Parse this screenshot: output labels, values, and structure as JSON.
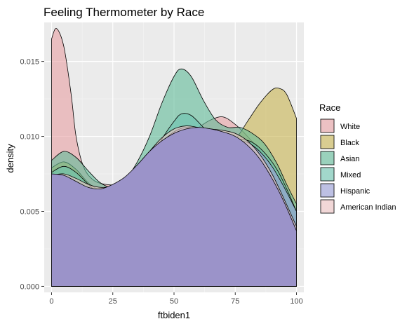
{
  "chart_data": {
    "type": "area",
    "title": "Feeling Thermometer by Race",
    "xlabel": "ftbiden1",
    "ylabel": "density",
    "xlim": [
      -3,
      103
    ],
    "ylim": [
      -0.0004,
      0.0176
    ],
    "x_ticks": [
      0,
      25,
      50,
      75,
      100
    ],
    "x_tick_labels": [
      "0",
      "25",
      "50",
      "75",
      "100"
    ],
    "y_ticks": [
      0.0,
      0.005,
      0.01,
      0.015
    ],
    "y_tick_labels": [
      "0.000",
      "0.005",
      "0.010",
      "0.015"
    ],
    "grid": true,
    "background": "#ebebeb",
    "legend": {
      "title": "Race",
      "position": "right"
    },
    "series": [
      {
        "name": "White",
        "color": "#e8a0a3",
        "opacity": 0.6,
        "points": [
          [
            0,
            0.0165
          ],
          [
            2,
            0.0172
          ],
          [
            5,
            0.016
          ],
          [
            8,
            0.0128
          ],
          [
            10,
            0.01
          ],
          [
            13,
            0.008
          ],
          [
            17,
            0.0071
          ],
          [
            22,
            0.0068
          ],
          [
            27,
            0.0068
          ],
          [
            33,
            0.0072
          ],
          [
            40,
            0.008
          ],
          [
            45,
            0.0088
          ],
          [
            50,
            0.0096
          ],
          [
            55,
            0.0101
          ],
          [
            60,
            0.0106
          ],
          [
            65,
            0.0111
          ],
          [
            70,
            0.0113
          ],
          [
            75,
            0.0108
          ],
          [
            80,
            0.01
          ],
          [
            85,
            0.009
          ],
          [
            90,
            0.0075
          ],
          [
            95,
            0.0058
          ],
          [
            100,
            0.004
          ]
        ]
      },
      {
        "name": "Black",
        "color": "#c8b450",
        "opacity": 0.6,
        "points": [
          [
            0,
            0.0079
          ],
          [
            5,
            0.0083
          ],
          [
            10,
            0.0078
          ],
          [
            15,
            0.0069
          ],
          [
            20,
            0.0064
          ],
          [
            25,
            0.0063
          ],
          [
            30,
            0.0066
          ],
          [
            35,
            0.0073
          ],
          [
            40,
            0.0082
          ],
          [
            45,
            0.009
          ],
          [
            50,
            0.0096
          ],
          [
            55,
            0.0098
          ],
          [
            60,
            0.0097
          ],
          [
            65,
            0.0094
          ],
          [
            70,
            0.0093
          ],
          [
            75,
            0.0098
          ],
          [
            80,
            0.011
          ],
          [
            85,
            0.0122
          ],
          [
            90,
            0.0131
          ],
          [
            93,
            0.0132
          ],
          [
            96,
            0.0128
          ],
          [
            100,
            0.0112
          ]
        ]
      },
      {
        "name": "Asian",
        "color": "#5fba98",
        "opacity": 0.6,
        "points": [
          [
            0,
            0.0084
          ],
          [
            5,
            0.009
          ],
          [
            10,
            0.0086
          ],
          [
            15,
            0.0077
          ],
          [
            20,
            0.0069
          ],
          [
            25,
            0.0066
          ],
          [
            30,
            0.0071
          ],
          [
            35,
            0.0083
          ],
          [
            40,
            0.01
          ],
          [
            45,
            0.0122
          ],
          [
            50,
            0.014
          ],
          [
            53,
            0.0145
          ],
          [
            57,
            0.014
          ],
          [
            62,
            0.0124
          ],
          [
            67,
            0.0111
          ],
          [
            72,
            0.0106
          ],
          [
            77,
            0.0106
          ],
          [
            82,
            0.0102
          ],
          [
            87,
            0.0095
          ],
          [
            92,
            0.0082
          ],
          [
            96,
            0.0068
          ],
          [
            100,
            0.0055
          ]
        ]
      },
      {
        "name": "Mixed",
        "color": "#6cc4b0",
        "opacity": 0.6,
        "points": [
          [
            0,
            0.0076
          ],
          [
            5,
            0.008
          ],
          [
            10,
            0.0076
          ],
          [
            15,
            0.0068
          ],
          [
            20,
            0.0061
          ],
          [
            25,
            0.0058
          ],
          [
            30,
            0.006
          ],
          [
            35,
            0.0068
          ],
          [
            40,
            0.0082
          ],
          [
            45,
            0.0098
          ],
          [
            50,
            0.011
          ],
          [
            53,
            0.0115
          ],
          [
            57,
            0.0114
          ],
          [
            62,
            0.0106
          ],
          [
            67,
            0.0098
          ],
          [
            72,
            0.0096
          ],
          [
            77,
            0.0098
          ],
          [
            82,
            0.0096
          ],
          [
            87,
            0.0089
          ],
          [
            92,
            0.0078
          ],
          [
            96,
            0.0065
          ],
          [
            100,
            0.005
          ]
        ]
      },
      {
        "name": "Hispanic",
        "color": "#9a9fd8",
        "opacity": 0.6,
        "points": [
          [
            0,
            0.0068
          ],
          [
            5,
            0.007
          ],
          [
            10,
            0.0066
          ],
          [
            15,
            0.006
          ],
          [
            20,
            0.0057
          ],
          [
            25,
            0.0058
          ],
          [
            30,
            0.0063
          ],
          [
            35,
            0.0074
          ],
          [
            40,
            0.0086
          ],
          [
            45,
            0.0096
          ],
          [
            50,
            0.0103
          ],
          [
            55,
            0.0106
          ],
          [
            60,
            0.0104
          ],
          [
            65,
            0.01
          ],
          [
            70,
            0.0097
          ],
          [
            75,
            0.0097
          ],
          [
            80,
            0.0096
          ],
          [
            85,
            0.009
          ],
          [
            90,
            0.008
          ],
          [
            95,
            0.0066
          ],
          [
            100,
            0.005
          ]
        ]
      },
      {
        "name": "American Indian",
        "color": "#f0c4c4",
        "opacity": 0.6,
        "points": [
          [
            0,
            0.0074
          ],
          [
            5,
            0.0075
          ],
          [
            10,
            0.0072
          ],
          [
            15,
            0.0068
          ],
          [
            20,
            0.0066
          ],
          [
            25,
            0.0067
          ],
          [
            30,
            0.0072
          ],
          [
            35,
            0.008
          ],
          [
            40,
            0.009
          ],
          [
            45,
            0.0099
          ],
          [
            50,
            0.0105
          ],
          [
            55,
            0.0107
          ],
          [
            60,
            0.0106
          ],
          [
            65,
            0.0105
          ],
          [
            70,
            0.0104
          ],
          [
            75,
            0.0102
          ],
          [
            80,
            0.0097
          ],
          [
            85,
            0.0088
          ],
          [
            90,
            0.0075
          ],
          [
            95,
            0.0058
          ],
          [
            100,
            0.004
          ]
        ]
      },
      {
        "name": "",
        "color": "#9b93c9",
        "opacity": 1.0,
        "points": [
          [
            0,
            0.0075
          ],
          [
            5,
            0.0074
          ],
          [
            10,
            0.007
          ],
          [
            15,
            0.0066
          ],
          [
            20,
            0.0065
          ],
          [
            25,
            0.0068
          ],
          [
            30,
            0.0073
          ],
          [
            35,
            0.0081
          ],
          [
            40,
            0.009
          ],
          [
            45,
            0.0097
          ],
          [
            50,
            0.0102
          ],
          [
            55,
            0.0105
          ],
          [
            60,
            0.0106
          ],
          [
            65,
            0.0105
          ],
          [
            70,
            0.0103
          ],
          [
            75,
            0.01
          ],
          [
            80,
            0.0094
          ],
          [
            85,
            0.0085
          ],
          [
            90,
            0.0072
          ],
          [
            95,
            0.0056
          ],
          [
            100,
            0.0037
          ]
        ]
      }
    ]
  }
}
